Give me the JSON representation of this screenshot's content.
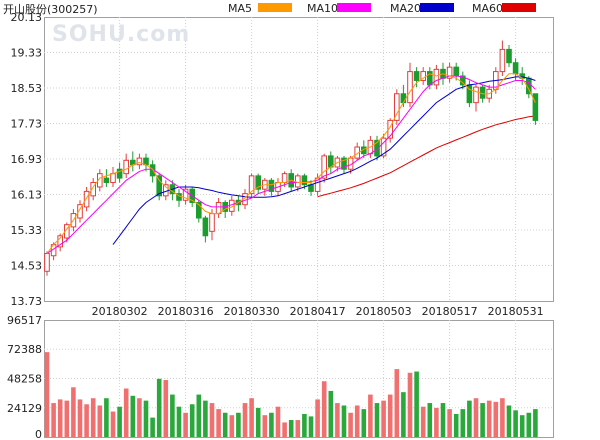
{
  "chart_data": {
    "type": "candlestick",
    "title": "开山股份(300257)",
    "watermark": "SOHU.com",
    "legend": [
      {
        "name": "MA5",
        "color": "#ff9900"
      },
      {
        "name": "MA10",
        "color": "#ff00ff"
      },
      {
        "name": "MA20",
        "color": "#0000cc"
      },
      {
        "name": "MA60",
        "color": "#e00000"
      }
    ],
    "price_axis": {
      "ticks": [
        "20.13",
        "19.33",
        "18.53",
        "17.73",
        "16.93",
        "16.13",
        "15.33",
        "14.53",
        "13.73"
      ],
      "range": [
        13.73,
        20.13
      ]
    },
    "volume_axis": {
      "ticks": [
        "96517",
        "72388",
        "48258",
        "24129",
        "0"
      ],
      "range": [
        0,
        96517
      ]
    },
    "x_tick_labels": [
      {
        "label": "20180302",
        "index": 11
      },
      {
        "label": "20180316",
        "index": 21
      },
      {
        "label": "20180330",
        "index": 31
      },
      {
        "label": "20180417",
        "index": 41
      },
      {
        "label": "20180503",
        "index": 51
      },
      {
        "label": "20180517",
        "index": 61
      },
      {
        "label": "20180531",
        "index": 71
      }
    ],
    "candles": [
      [
        14.4,
        14.8,
        14.3,
        14.85
      ],
      [
        14.75,
        15.0,
        14.65,
        15.05
      ],
      [
        14.95,
        15.2,
        14.85,
        15.25
      ],
      [
        15.15,
        15.45,
        15.05,
        15.5
      ],
      [
        15.4,
        15.7,
        15.3,
        15.8
      ],
      [
        15.6,
        15.9,
        15.5,
        16.0
      ],
      [
        15.85,
        16.2,
        15.75,
        16.3
      ],
      [
        16.1,
        16.4,
        16.0,
        16.5
      ],
      [
        16.3,
        16.6,
        16.2,
        16.7
      ],
      [
        16.5,
        16.4,
        16.3,
        16.7
      ],
      [
        16.4,
        16.6,
        16.3,
        16.75
      ],
      [
        16.7,
        16.5,
        16.4,
        16.85
      ],
      [
        16.6,
        16.9,
        16.5,
        17.05
      ],
      [
        16.9,
        16.8,
        16.65,
        17.1
      ],
      [
        16.8,
        16.95,
        16.7,
        17.05
      ],
      [
        16.95,
        16.8,
        16.65,
        17.05
      ],
      [
        16.8,
        16.55,
        16.4,
        16.9
      ],
      [
        16.55,
        16.1,
        16.0,
        16.6
      ],
      [
        16.1,
        16.35,
        16.0,
        16.45
      ],
      [
        16.35,
        16.15,
        16.0,
        16.45
      ],
      [
        16.15,
        16.0,
        15.85,
        16.25
      ],
      [
        16.0,
        16.25,
        15.9,
        16.35
      ],
      [
        16.25,
        15.95,
        15.85,
        16.3
      ],
      [
        15.95,
        15.6,
        15.5,
        16.0
      ],
      [
        15.6,
        15.2,
        15.05,
        15.65
      ],
      [
        15.3,
        15.7,
        15.1,
        15.8
      ],
      [
        15.7,
        15.95,
        15.6,
        16.05
      ],
      [
        15.95,
        15.75,
        15.6,
        16.0
      ],
      [
        15.75,
        16.0,
        15.65,
        16.1
      ],
      [
        16.0,
        15.9,
        15.75,
        16.1
      ],
      [
        15.9,
        16.15,
        15.8,
        16.25
      ],
      [
        16.15,
        16.55,
        16.05,
        16.6
      ],
      [
        16.55,
        16.25,
        16.15,
        16.6
      ],
      [
        16.25,
        16.45,
        16.1,
        16.5
      ],
      [
        16.45,
        16.2,
        16.1,
        16.5
      ],
      [
        16.2,
        16.4,
        16.1,
        16.5
      ],
      [
        16.4,
        16.6,
        16.3,
        16.65
      ],
      [
        16.6,
        16.3,
        16.2,
        16.7
      ],
      [
        16.3,
        16.55,
        16.2,
        16.6
      ],
      [
        16.55,
        16.35,
        16.25,
        16.6
      ],
      [
        16.35,
        16.2,
        16.1,
        16.45
      ],
      [
        16.2,
        16.5,
        16.1,
        16.6
      ],
      [
        16.5,
        17.0,
        16.4,
        17.05
      ],
      [
        17.0,
        16.75,
        16.6,
        17.1
      ],
      [
        16.75,
        16.95,
        16.65,
        17.0
      ],
      [
        16.95,
        16.7,
        16.6,
        17.0
      ],
      [
        16.7,
        16.95,
        16.6,
        17.0
      ],
      [
        16.95,
        17.2,
        16.9,
        17.3
      ],
      [
        17.2,
        17.05,
        16.95,
        17.35
      ],
      [
        17.05,
        17.35,
        16.95,
        17.45
      ],
      [
        17.35,
        17.0,
        16.9,
        17.45
      ],
      [
        17.0,
        17.4,
        16.95,
        17.5
      ],
      [
        17.4,
        17.8,
        17.3,
        17.85
      ],
      [
        17.8,
        18.4,
        17.7,
        18.5
      ],
      [
        18.4,
        18.2,
        18.1,
        18.6
      ],
      [
        18.2,
        18.9,
        18.1,
        19.1
      ],
      [
        18.9,
        18.7,
        18.55,
        19.0
      ],
      [
        18.7,
        18.9,
        18.6,
        19.0
      ],
      [
        18.9,
        18.6,
        18.5,
        19.0
      ],
      [
        18.6,
        18.95,
        18.5,
        19.05
      ],
      [
        18.95,
        18.75,
        18.6,
        19.1
      ],
      [
        18.75,
        19.0,
        18.65,
        19.1
      ],
      [
        19.0,
        18.8,
        18.7,
        19.1
      ],
      [
        18.8,
        18.6,
        18.5,
        18.9
      ],
      [
        18.6,
        18.2,
        18.1,
        18.7
      ],
      [
        18.2,
        18.55,
        18.0,
        18.6
      ],
      [
        18.55,
        18.3,
        18.2,
        18.6
      ],
      [
        18.3,
        18.5,
        18.2,
        18.6
      ],
      [
        18.5,
        18.9,
        18.4,
        19.0
      ],
      [
        18.9,
        19.4,
        18.8,
        19.6
      ],
      [
        19.4,
        19.1,
        19.0,
        19.5
      ],
      [
        19.1,
        18.85,
        18.7,
        19.2
      ],
      [
        18.85,
        18.75,
        18.6,
        19.0
      ],
      [
        18.75,
        18.4,
        18.3,
        18.8
      ],
      [
        18.4,
        17.8,
        17.7,
        18.4
      ]
    ],
    "volumes": [
      70000,
      28000,
      31000,
      30000,
      41000,
      31000,
      27000,
      32000,
      26000,
      32000,
      21000,
      25000,
      40000,
      34000,
      32000,
      30000,
      16000,
      48000,
      47000,
      35000,
      25000,
      20000,
      27000,
      35000,
      30000,
      28000,
      23000,
      20000,
      18000,
      20000,
      28000,
      32000,
      24000,
      18000,
      20000,
      25000,
      12000,
      14000,
      14000,
      19000,
      17000,
      31000,
      46000,
      38000,
      28000,
      26000,
      20000,
      26000,
      23000,
      35000,
      28000,
      30000,
      35000,
      56000,
      37000,
      53000,
      54000,
      25000,
      28000,
      24000,
      28000,
      23000,
      19000,
      23000,
      30000,
      32000,
      28000,
      30000,
      29000,
      32000,
      26000,
      22000,
      18000,
      20000,
      23000
    ],
    "ma5": [
      14.8,
      15.0,
      15.15,
      15.35,
      15.55,
      15.8,
      16.05,
      16.3,
      16.5,
      16.55,
      16.6,
      16.65,
      16.7,
      16.8,
      16.85,
      16.8,
      16.7,
      16.45,
      16.3,
      16.2,
      16.1,
      16.05,
      16.0,
      15.9,
      15.75,
      15.7,
      15.7,
      15.8,
      15.85,
      15.95,
      16.05,
      16.2,
      16.3,
      16.35,
      16.35,
      16.4,
      16.4,
      16.45,
      16.4,
      16.4,
      16.4,
      16.5,
      16.65,
      16.75,
      16.85,
      16.9,
      16.95,
      17.05,
      17.15,
      17.2,
      17.3,
      17.45,
      17.65,
      17.95,
      18.2,
      18.45,
      18.65,
      18.75,
      18.85,
      18.8,
      18.85,
      18.8,
      18.75,
      18.65,
      18.5,
      18.45,
      18.4,
      18.4,
      18.5,
      18.7,
      18.85,
      18.85,
      18.75,
      18.5,
      18.2
    ],
    "ma10": [
      14.8,
      14.9,
      15.0,
      15.1,
      15.25,
      15.4,
      15.55,
      15.7,
      15.85,
      16.0,
      16.15,
      16.3,
      16.45,
      16.55,
      16.65,
      16.7,
      16.7,
      16.6,
      16.5,
      16.4,
      16.3,
      16.2,
      16.1,
      16.0,
      15.9,
      15.85,
      15.85,
      15.85,
      15.9,
      15.95,
      16.0,
      16.05,
      16.15,
      16.2,
      16.25,
      16.3,
      16.35,
      16.4,
      16.4,
      16.4,
      16.42,
      16.45,
      16.55,
      16.6,
      16.7,
      16.75,
      16.8,
      16.9,
      17.0,
      17.05,
      17.15,
      17.3,
      17.45,
      17.65,
      17.85,
      18.05,
      18.25,
      18.45,
      18.6,
      18.7,
      18.75,
      18.8,
      18.8,
      18.78,
      18.72,
      18.65,
      18.6,
      18.55,
      18.55,
      18.6,
      18.65,
      18.7,
      18.7,
      18.65,
      18.5
    ],
    "ma20": [
      null,
      null,
      null,
      null,
      null,
      null,
      null,
      null,
      null,
      null,
      15.0,
      15.2,
      15.4,
      15.6,
      15.8,
      15.95,
      16.05,
      16.15,
      16.2,
      16.25,
      16.3,
      16.3,
      16.3,
      16.28,
      16.25,
      16.22,
      16.18,
      16.15,
      16.12,
      16.1,
      16.08,
      16.07,
      16.07,
      16.07,
      16.08,
      16.1,
      16.15,
      16.2,
      16.25,
      16.3,
      16.35,
      16.4,
      16.45,
      16.5,
      16.55,
      16.6,
      16.65,
      16.72,
      16.8,
      16.88,
      16.95,
      17.05,
      17.15,
      17.3,
      17.45,
      17.6,
      17.75,
      17.9,
      18.05,
      18.2,
      18.3,
      18.4,
      18.5,
      18.55,
      18.6,
      18.62,
      18.65,
      18.68,
      18.7,
      18.72,
      18.75,
      18.78,
      18.78,
      18.75,
      18.7
    ],
    "ma60": [
      null,
      null,
      null,
      null,
      null,
      null,
      null,
      null,
      null,
      null,
      null,
      null,
      null,
      null,
      null,
      null,
      null,
      null,
      null,
      null,
      null,
      null,
      null,
      null,
      null,
      null,
      null,
      null,
      null,
      null,
      null,
      null,
      null,
      null,
      null,
      null,
      null,
      null,
      null,
      null,
      null,
      16.08,
      16.12,
      16.16,
      16.2,
      16.24,
      16.28,
      16.33,
      16.38,
      16.44,
      16.5,
      16.56,
      16.62,
      16.7,
      16.78,
      16.86,
      16.94,
      17.02,
      17.1,
      17.18,
      17.24,
      17.3,
      17.36,
      17.42,
      17.48,
      17.54,
      17.6,
      17.65,
      17.7,
      17.74,
      17.78,
      17.82,
      17.85,
      17.88,
      17.9
    ]
  }
}
